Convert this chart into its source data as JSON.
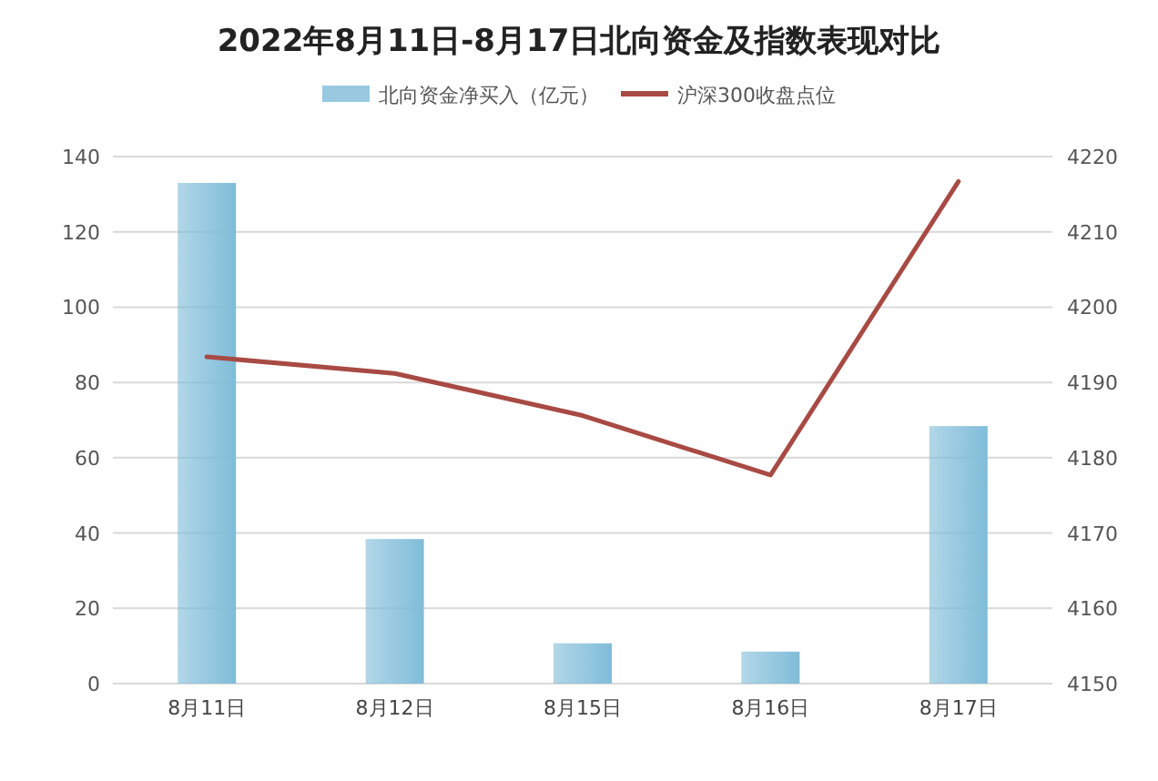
{
  "chart_data": {
    "type": "bar",
    "title": "2022年8月11日-8月17日北向资金及指数表现对比",
    "categories": [
      "8月11日",
      "8月12日",
      "8月15日",
      "8月16日",
      "8月17日"
    ],
    "series": [
      {
        "name": "北向资金净买入（亿元）",
        "color": "#7fbcd9",
        "values": [
          133,
          38.4,
          10.7,
          8.5,
          68.4
        ]
      },
      {
        "name": "沪深300收盘点位",
        "type": "line",
        "axis": "y2",
        "color": "#a84a44",
        "values": [
          4193.4,
          4191.2,
          4185.6,
          4177.7,
          4216.7
        ]
      }
    ],
    "ylim": [
      0,
      140
    ],
    "yticks": [
      0,
      20,
      40,
      60,
      80,
      100,
      120,
      140
    ],
    "y2lim": [
      4150,
      4220
    ],
    "y2ticks": [
      4150,
      4160,
      4170,
      4180,
      4190,
      4200,
      4210,
      4220
    ],
    "grid": "y",
    "legend": "top"
  }
}
